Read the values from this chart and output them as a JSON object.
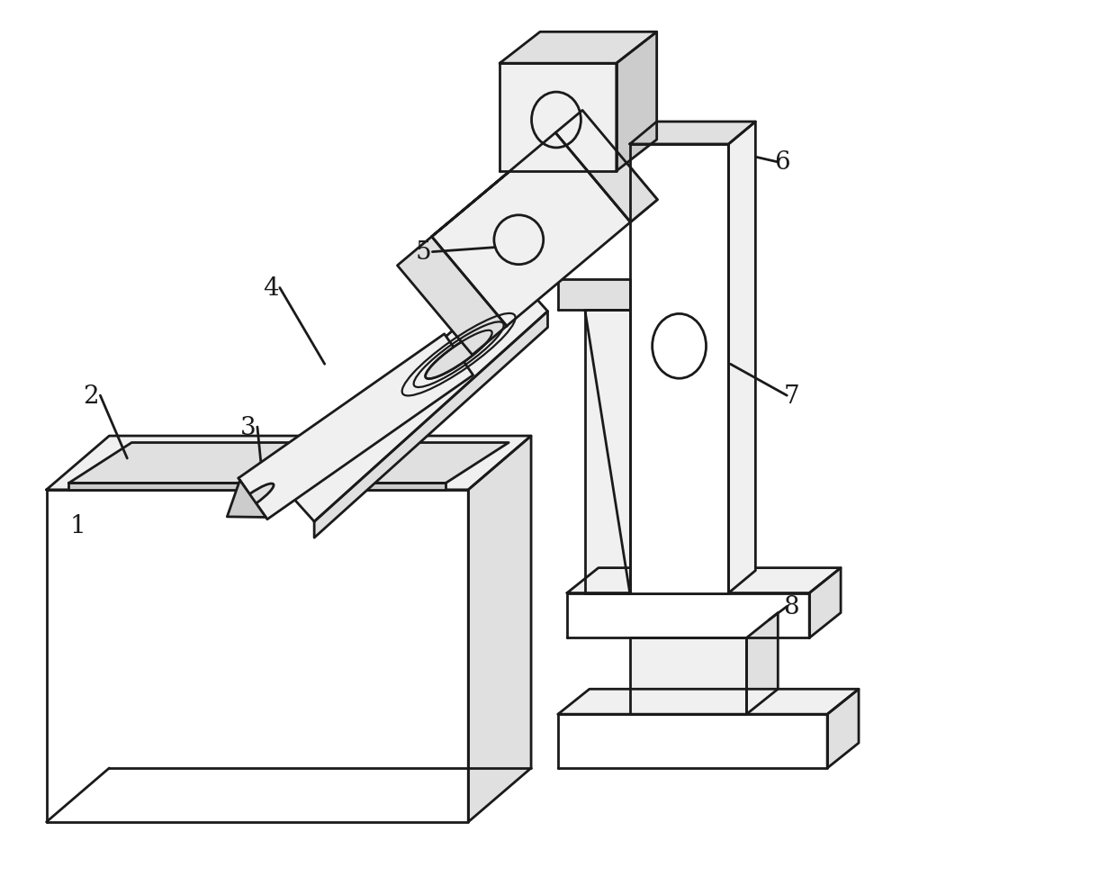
{
  "background_color": "#ffffff",
  "line_color": "#1a1a1a",
  "line_width": 2.0,
  "fill_white": "#ffffff",
  "fill_light": "#f0f0f0",
  "fill_mid": "#e0e0e0",
  "fill_dark": "#cccccc",
  "label_fontsize": 20
}
